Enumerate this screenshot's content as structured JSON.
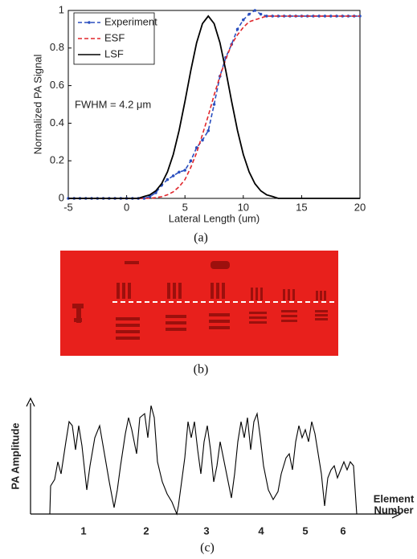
{
  "chart_data": [
    {
      "type": "line",
      "xlabel": "Lateral Length (um)",
      "ylabel": "Normalized PA Signal",
      "annotation": "FWHM = 4.2 μm",
      "xlim": [
        -5,
        20
      ],
      "ylim": [
        0,
        1
      ],
      "xticks": [
        -5,
        0,
        5,
        10,
        15,
        20
      ],
      "yticks": [
        0,
        0.2,
        0.4,
        0.6,
        0.8,
        1
      ],
      "grid": false,
      "legend": "upper left",
      "x": [
        -5,
        -4.5,
        -4,
        -3.5,
        -3,
        -2.5,
        -2,
        -1.5,
        -1,
        -0.5,
        0,
        0.5,
        1,
        1.5,
        2,
        2.5,
        3,
        3.5,
        4,
        4.5,
        5,
        5.5,
        6,
        6.5,
        7,
        7.5,
        8,
        8.5,
        9,
        9.5,
        10,
        10.5,
        11,
        11.5,
        12,
        12.5,
        13,
        13.5,
        14,
        14.5,
        15,
        15.5,
        16,
        16.5,
        17,
        17.5,
        18,
        18.5,
        19,
        19.5,
        20
      ],
      "series": [
        {
          "name": "Experiment",
          "color": "#2a4fbf",
          "style": "dashed",
          "marker": true,
          "values": [
            0,
            0,
            0,
            0,
            0,
            0,
            0,
            0,
            0,
            0,
            0,
            0,
            0,
            0,
            0.01,
            0.03,
            0.07,
            0.1,
            0.12,
            0.14,
            0.15,
            0.2,
            0.27,
            0.31,
            0.36,
            0.5,
            0.65,
            0.75,
            0.82,
            0.9,
            0.95,
            0.98,
            1.0,
            0.98,
            0.97,
            0.97,
            0.97,
            0.97,
            0.97,
            0.97,
            0.97,
            0.97,
            0.97,
            0.97,
            0.97,
            0.97,
            0.97,
            0.97,
            0.97,
            0.97,
            0.97
          ]
        },
        {
          "name": "ESF",
          "color": "#e0262b",
          "style": "dashed",
          "marker": false,
          "values": [
            0,
            0,
            0,
            0,
            0,
            0,
            0,
            0,
            0,
            0,
            0,
            0,
            0,
            0,
            0,
            0.004,
            0.009,
            0.019,
            0.035,
            0.062,
            0.1,
            0.165,
            0.243,
            0.34,
            0.44,
            0.55,
            0.65,
            0.74,
            0.82,
            0.87,
            0.91,
            0.94,
            0.95,
            0.96,
            0.97,
            0.97,
            0.97,
            0.97,
            0.97,
            0.97,
            0.97,
            0.97,
            0.97,
            0.97,
            0.97,
            0.97,
            0.97,
            0.97,
            0.97,
            0.97,
            0.97
          ]
        },
        {
          "name": "LSF",
          "color": "#000000",
          "style": "solid",
          "marker": false,
          "values": [
            0,
            0,
            0,
            0,
            0,
            0,
            0,
            0,
            0,
            0,
            0,
            0,
            0,
            0.01,
            0.019,
            0.04,
            0.078,
            0.141,
            0.234,
            0.362,
            0.516,
            0.68,
            0.828,
            0.93,
            0.97,
            0.93,
            0.828,
            0.68,
            0.516,
            0.362,
            0.234,
            0.141,
            0.078,
            0.04,
            0.019,
            0.01,
            0,
            0,
            0,
            0,
            0,
            0,
            0,
            0,
            0,
            0,
            0,
            0,
            0,
            0,
            0
          ]
        }
      ]
    }
  ],
  "panel_c": {
    "ylabel": "PA Amplitude",
    "xlabel": [
      "Element",
      "Number"
    ],
    "element_labels": [
      "1",
      "2",
      "3",
      "4",
      "5",
      "6"
    ]
  },
  "captions": [
    "(a)",
    "(b)",
    "(c)"
  ]
}
